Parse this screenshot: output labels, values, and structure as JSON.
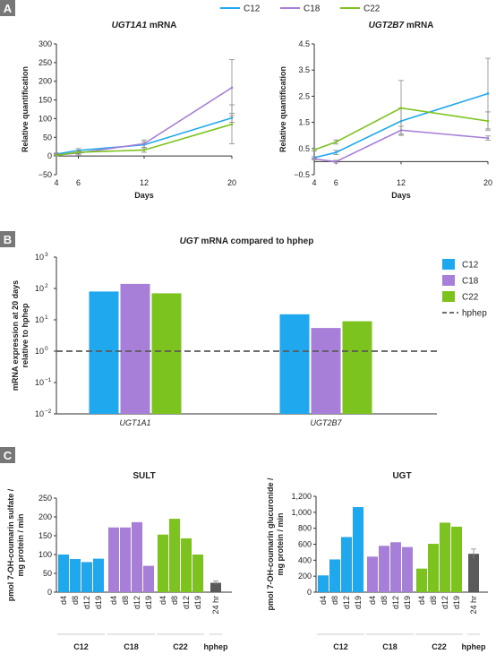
{
  "panels": {
    "A": "A",
    "B": "B",
    "C": "C"
  },
  "colors": {
    "C12": "#1fa8ee",
    "C18": "#a87fd8",
    "C22": "#7cc31f",
    "hphep": "#5a5a5a",
    "error": "#888888"
  },
  "chart_data": [
    {
      "id": "ugt1a1",
      "type": "line",
      "title_gene": "UGT1A1",
      "title_suffix": " mRNA",
      "xlabel": "Days",
      "ylabel": "Relative quantification",
      "x": [
        4,
        6,
        12,
        20
      ],
      "x_ticks": [
        "4",
        "6",
        "12",
        "20"
      ],
      "ylim": [
        -50,
        300
      ],
      "y_ticks": [
        "−50",
        "0",
        "50",
        "100",
        "150",
        "200",
        "250",
        "300"
      ],
      "y_tick_values": [
        -50,
        0,
        50,
        100,
        150,
        200,
        250,
        300
      ],
      "legend": [
        "C12",
        "C18",
        "C22"
      ],
      "series": [
        {
          "name": "C12",
          "values": [
            5,
            15,
            30,
            102
          ],
          "errors": [
            3,
            5,
            8,
            12
          ]
        },
        {
          "name": "C18",
          "values": [
            3,
            8,
            33,
            183
          ],
          "errors": [
            3,
            5,
            10,
            75
          ]
        },
        {
          "name": "C22",
          "values": [
            2,
            10,
            16,
            85
          ],
          "errors": [
            2,
            4,
            6,
            52
          ]
        }
      ]
    },
    {
      "id": "ugt2b7",
      "type": "line",
      "title_gene": "UGT2B7",
      "title_suffix": " mRNA",
      "xlabel": "Days",
      "ylabel": "Relative quantification",
      "x": [
        4,
        6,
        12,
        20
      ],
      "x_ticks": [
        "4",
        "6",
        "12",
        "20"
      ],
      "ylim": [
        -0.5,
        4.5
      ],
      "y_ticks": [
        "−0.5",
        "0.5",
        "1.5",
        "2.5",
        "3.5",
        "4.5"
      ],
      "y_tick_values": [
        -0.5,
        0.5,
        1.5,
        2.5,
        3.5,
        4.5
      ],
      "series": [
        {
          "name": "C12",
          "values": [
            0.15,
            0.35,
            1.55,
            2.6
          ],
          "errors": [
            0.04,
            0.08,
            0.5,
            1.35
          ]
        },
        {
          "name": "C18",
          "values": [
            0.1,
            0.0,
            1.2,
            0.9
          ],
          "errors": [
            0.03,
            0.05,
            0.15,
            0.08
          ]
        },
        {
          "name": "C22",
          "values": [
            0.45,
            0.75,
            2.05,
            1.55
          ],
          "errors": [
            0.04,
            0.08,
            1.05,
            0.35
          ]
        }
      ]
    },
    {
      "id": "ugt-vs-hphep",
      "type": "bar",
      "title_gene": "UGT",
      "title_suffix": " mRNA compared to hphep",
      "ylabel_line1": "mRNA expression at 20 days",
      "ylabel_line2": "relative to hphep",
      "y_scale": "log",
      "y_ticks": [
        "10",
        "10",
        "10",
        "10",
        "10",
        "10"
      ],
      "y_tick_exponents": [
        "−2",
        "−1",
        "0",
        "1",
        "2",
        "3"
      ],
      "y_tick_values": [
        -2,
        -1,
        0,
        1,
        2,
        3
      ],
      "ylim": [
        0.01,
        1000
      ],
      "categories": [
        "UGT1A1",
        "UGT2B7"
      ],
      "series": [
        {
          "name": "C12",
          "values": [
            80,
            15
          ]
        },
        {
          "name": "C18",
          "values": [
            140,
            5.5
          ]
        },
        {
          "name": "C22",
          "values": [
            70,
            9
          ]
        }
      ],
      "reference": {
        "name": "hphep",
        "value": 1
      },
      "legend": [
        "C12",
        "C18",
        "C22",
        "hphep"
      ],
      "legend_position": "right"
    },
    {
      "id": "sult",
      "type": "bar",
      "title": "SULT",
      "ylabel_line1": "pmol 7-OH-coumarin sulfate /",
      "ylabel_line2": "mg protein / min",
      "ylim": [
        0,
        250
      ],
      "y_ticks": [
        "0",
        "50",
        "100",
        "150",
        "200",
        "250"
      ],
      "y_tick_values": [
        0,
        50,
        100,
        150,
        200,
        250
      ],
      "groups": [
        {
          "name": "C12",
          "labels": [
            "d4",
            "d8",
            "d12",
            "d19"
          ],
          "values": [
            100,
            88,
            80,
            89
          ]
        },
        {
          "name": "C18",
          "labels": [
            "d4",
            "d8",
            "d12",
            "d19"
          ],
          "values": [
            172,
            172,
            186,
            70
          ]
        },
        {
          "name": "C22",
          "labels": [
            "d4",
            "d8",
            "d12",
            "d19"
          ],
          "values": [
            153,
            195,
            143,
            100
          ]
        },
        {
          "name": "hphep",
          "labels": [
            "24 hr"
          ],
          "values": [
            25
          ],
          "errors": [
            5
          ]
        }
      ]
    },
    {
      "id": "ugt-activity",
      "type": "bar",
      "title": "UGT",
      "ylabel_line1": "pmol 7-OH-coumarin glucuronide /",
      "ylabel_line2": "mg protein / min",
      "ylim": [
        0,
        1200
      ],
      "y_ticks": [
        "0",
        "200",
        "400",
        "600",
        "800",
        "1,000",
        "1,200"
      ],
      "y_tick_values": [
        0,
        200,
        400,
        600,
        800,
        1000,
        1200
      ],
      "groups": [
        {
          "name": "C12",
          "labels": [
            "d4",
            "d8",
            "d12",
            "d19"
          ],
          "values": [
            210,
            410,
            690,
            1065
          ]
        },
        {
          "name": "C18",
          "labels": [
            "d4",
            "d8",
            "d12",
            "d19"
          ],
          "values": [
            445,
            580,
            625,
            565
          ]
        },
        {
          "name": "C22",
          "labels": [
            "d4",
            "d8",
            "d12",
            "d19"
          ],
          "values": [
            295,
            605,
            870,
            820
          ]
        },
        {
          "name": "hphep",
          "labels": [
            "24 hr"
          ],
          "values": [
            480
          ],
          "errors": [
            60
          ]
        }
      ]
    }
  ]
}
